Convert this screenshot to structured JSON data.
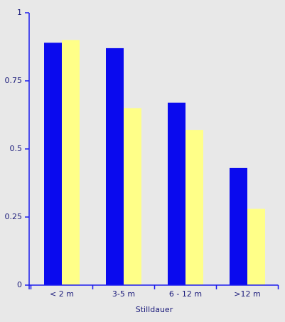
{
  "chart_data": {
    "type": "bar",
    "x_label": "Stilldauer",
    "categories": [
      "< 2 m",
      "3-5 m",
      "6 - 12 m",
      ">12 m"
    ],
    "series": [
      {
        "color": "#0a0aee",
        "values": [
          0.89,
          0.87,
          0.67,
          0.43
        ]
      },
      {
        "color": "#ffff88",
        "values": [
          0.9,
          0.65,
          0.57,
          0.28
        ]
      }
    ],
    "ylim": [
      0,
      1
    ],
    "yticks": [
      0,
      0.25,
      0.5,
      0.75,
      1
    ],
    "axis_color": "#1a1aee"
  }
}
